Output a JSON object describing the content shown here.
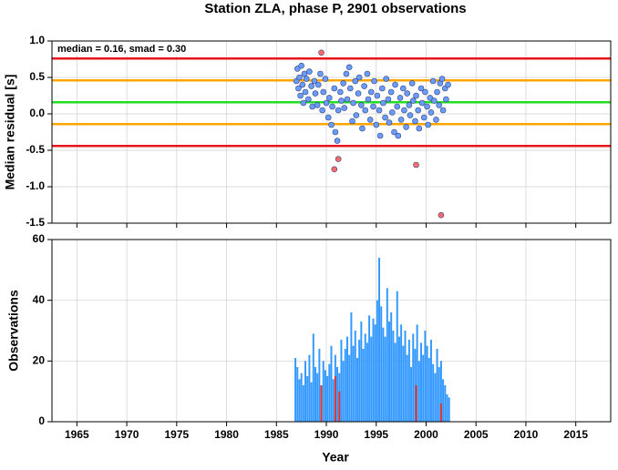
{
  "chart_data": [
    {
      "type": "scatter",
      "title": "Station ZLA, phase P, 2901 observations",
      "ylabel": "Median residual [s]",
      "annotation": "median = 0.16, smad = 0.30",
      "xlim": [
        1962.5,
        2018.5
      ],
      "ylim": [
        -1.5,
        1.0
      ],
      "yticks": [
        {
          "value": 1.0,
          "label": "1.0"
        },
        0.5,
        {
          "value": 0.0,
          "label": "0.0"
        },
        -0.5,
        {
          "value": -1.0,
          "label": "-1.0"
        },
        -1.5
      ],
      "grid": true,
      "hlines": [
        {
          "value": 0.76,
          "color": "#e8141c"
        },
        {
          "value": 0.46,
          "color": "#ffa500"
        },
        {
          "value": 0.16,
          "color": "#22dd22"
        },
        {
          "value": -0.14,
          "color": "#ffa500"
        },
        {
          "value": -0.44,
          "color": "#e8141c"
        }
      ],
      "series": [
        {
          "color": "#6a9cff",
          "x": [
            1987.0,
            1987.1,
            1987.2,
            1987.3,
            1987.4,
            1987.5,
            1987.6,
            1987.7,
            1987.8,
            1987.9,
            1988.0,
            1988.2,
            1988.3,
            1988.5,
            1988.6,
            1988.8,
            1988.9,
            1989.1,
            1989.2,
            1989.4,
            1989.6,
            1989.7,
            1989.9,
            1990.0,
            1990.2,
            1990.3,
            1990.5,
            1990.6,
            1990.8,
            1990.9,
            1991.1,
            1991.2,
            1991.4,
            1991.5,
            1991.7,
            1991.8,
            1992.0,
            1992.1,
            1992.3,
            1992.4,
            1992.6,
            1992.7,
            1992.9,
            1993.0,
            1993.2,
            1993.3,
            1993.5,
            1993.6,
            1993.8,
            1993.9,
            1994.1,
            1994.2,
            1994.4,
            1994.5,
            1994.7,
            1994.8,
            1995.0,
            1995.1,
            1995.3,
            1995.4,
            1995.6,
            1995.7,
            1995.9,
            1996.0,
            1996.2,
            1996.3,
            1996.5,
            1996.6,
            1996.8,
            1996.9,
            1997.1,
            1997.2,
            1997.4,
            1997.5,
            1997.7,
            1997.8,
            1998.0,
            1998.1,
            1998.3,
            1998.4,
            1998.6,
            1998.7,
            1998.9,
            1999.0,
            1999.2,
            1999.3,
            1999.5,
            1999.6,
            1999.8,
            1999.9,
            2000.1,
            2000.2,
            2000.4,
            2000.5,
            2000.7,
            2000.8,
            2001.0,
            2001.1,
            2001.3,
            2001.4,
            2001.6,
            2001.7,
            2001.9,
            2002.0,
            2002.2
          ],
          "values": [
            0.45,
            0.62,
            0.35,
            0.5,
            0.25,
            0.66,
            0.4,
            0.15,
            0.55,
            0.3,
            0.48,
            0.2,
            0.58,
            0.38,
            0.1,
            0.45,
            0.28,
            0.12,
            0.4,
            0.55,
            0.05,
            0.3,
            0.48,
            0.15,
            -0.05,
            0.22,
            -0.15,
            0.1,
            0.35,
            -0.25,
            -0.37,
            0.05,
            0.3,
            0.18,
            0.42,
            0.08,
            0.55,
            0.2,
            0.64,
            0.35,
            -0.1,
            0.15,
            0.45,
            -0.02,
            0.28,
            0.5,
            0.12,
            -0.2,
            0.38,
            0.05,
            0.55,
            0.2,
            -0.08,
            0.3,
            0.1,
            0.45,
            -0.15,
            0.25,
            0.05,
            -0.3,
            0.35,
            0.15,
            -0.05,
            0.48,
            0.2,
            -0.12,
            0.3,
            0.02,
            -0.25,
            0.4,
            0.1,
            -0.3,
            0.22,
            -0.08,
            0.35,
            0.05,
            -0.18,
            0.28,
            0.12,
            -0.02,
            0.42,
            0.18,
            -0.1,
            0.25,
            0.05,
            -0.2,
            0.35,
            0.15,
            -0.05,
            0.3,
            0.1,
            -0.15,
            0.22,
            0.02,
            0.45,
            0.18,
            -0.08,
            0.3,
            0.12,
            0.42,
            0.48,
            0.05,
            0.35,
            0.2,
            0.4
          ]
        },
        {
          "color": "#ff6a6a",
          "x": [
            1989.5,
            1990.8,
            1991.2,
            1999.0,
            2001.5
          ],
          "values": [
            0.84,
            -0.76,
            -0.62,
            -0.7,
            -1.39
          ]
        }
      ]
    },
    {
      "type": "bar",
      "ylabel": "Observations",
      "xlabel": "Year",
      "xlim": [
        1962.5,
        2018.5
      ],
      "ylim": [
        0,
        60
      ],
      "yticks": [
        0,
        20,
        40,
        60
      ],
      "xticks": [
        1965,
        1970,
        1975,
        1980,
        1985,
        1990,
        1995,
        2000,
        2005,
        2010,
        2015
      ],
      "grid": true,
      "series": [
        {
          "color": "#3399ff",
          "x": [
            1986.9,
            1987.1,
            1987.3,
            1987.5,
            1987.7,
            1987.9,
            1988.1,
            1988.3,
            1988.5,
            1988.7,
            1988.9,
            1989.1,
            1989.3,
            1989.5,
            1989.7,
            1989.9,
            1990.1,
            1990.3,
            1990.5,
            1990.7,
            1990.9,
            1991.1,
            1991.3,
            1991.5,
            1991.7,
            1991.9,
            1992.1,
            1992.3,
            1992.5,
            1992.7,
            1992.9,
            1993.1,
            1993.3,
            1993.5,
            1993.7,
            1993.9,
            1994.1,
            1994.3,
            1994.5,
            1994.7,
            1994.9,
            1995.1,
            1995.3,
            1995.5,
            1995.7,
            1995.9,
            1996.1,
            1996.3,
            1996.5,
            1996.7,
            1996.9,
            1997.1,
            1997.3,
            1997.5,
            1997.7,
            1997.9,
            1998.1,
            1998.3,
            1998.5,
            1998.7,
            1998.9,
            1999.1,
            1999.3,
            1999.5,
            1999.7,
            1999.9,
            2000.1,
            2000.3,
            2000.5,
            2000.7,
            2000.9,
            2001.1,
            2001.3,
            2001.5,
            2001.7,
            2001.9,
            2002.1,
            2002.3
          ],
          "values": [
            21,
            18,
            14,
            16,
            12,
            20,
            15,
            22,
            13,
            29,
            18,
            16,
            24,
            12,
            20,
            17,
            15,
            19,
            25,
            14,
            22,
            18,
            16,
            27,
            20,
            24,
            28,
            22,
            36,
            25,
            30,
            21,
            27,
            33,
            24,
            29,
            26,
            35,
            28,
            34,
            32,
            40,
            54,
            38,
            31,
            28,
            44,
            33,
            36,
            30,
            26,
            43,
            28,
            32,
            25,
            30,
            22,
            27,
            18,
            29,
            24,
            32,
            20,
            26,
            22,
            30,
            25,
            21,
            27,
            19,
            16,
            24,
            18,
            20,
            14,
            12,
            9,
            8
          ]
        },
        {
          "color": "#dd3333",
          "x": [
            1989.5,
            1990.9,
            1991.3,
            1999.0,
            2001.5
          ],
          "values": [
            12,
            15,
            10,
            12,
            6
          ]
        }
      ]
    }
  ]
}
